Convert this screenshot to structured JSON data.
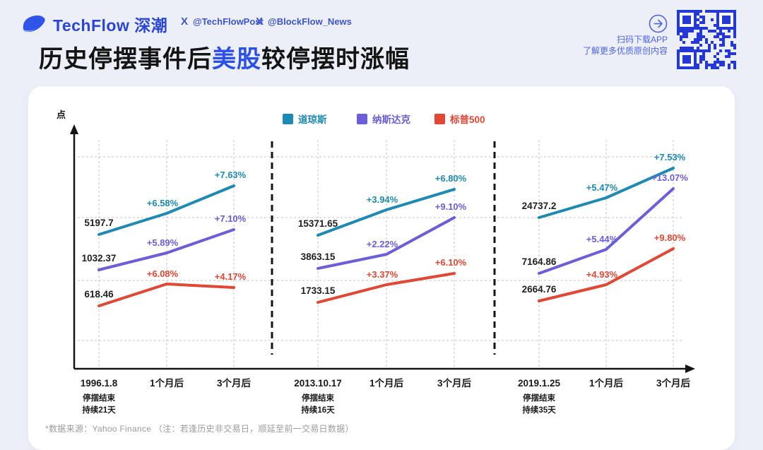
{
  "header": {
    "brand": "TechFlow 深潮",
    "x_glyph": "X",
    "handles": [
      "@TechFlowPost",
      "@BlockFlow_News"
    ],
    "qr_caption_line1": "扫码下载APP",
    "qr_caption_line2": "了解更多优质原创内容"
  },
  "title": {
    "prefix": "历史停摆事件后",
    "highlight": "美股",
    "suffix": "较停摆时涨幅"
  },
  "colors": {
    "background": "#EDEFF8",
    "card": "#FFFFFF",
    "title_highlight_blue": "#2B50E8",
    "brand_blue": "#2946D8",
    "qr_blue": "#2438D6",
    "dow_teal": "#1E89B2",
    "nasdaq_purple": "#6A5ED9",
    "sp500_red": "#E04734"
  },
  "footer": {
    "source": "*数据来源：Yahoo Finance （注：若逢历史非交易日，顺延至前一交易日数据）"
  },
  "chart_data": {
    "type": "line",
    "unit_label": "点",
    "grid": "dashed",
    "legend_position": "top",
    "legend": [
      {
        "name": "道琼斯",
        "color": "#1E89B2"
      },
      {
        "name": "纳斯达克",
        "color": "#6A5ED9"
      },
      {
        "name": "标普500",
        "color": "#E04734"
      }
    ],
    "panels": [
      {
        "date": "1996.1.8",
        "note_line1": "停摆结束",
        "note_line2": "持续21天",
        "x_labels": [
          "1996.1.8",
          "1个月后",
          "3个月后"
        ],
        "series": [
          {
            "name": "道琼斯",
            "start": 5197.7,
            "start_label": "5197.7",
            "pct_1m": "+6.58%",
            "pct_3m": "+7.63%",
            "pct_values": [
              6.58,
              7.63
            ]
          },
          {
            "name": "纳斯达克",
            "start": 1032.37,
            "start_label": "1032.37",
            "pct_1m": "+5.89%",
            "pct_3m": "+7.10%",
            "pct_values": [
              5.89,
              7.1
            ]
          },
          {
            "name": "标普500",
            "start": 618.46,
            "start_label": "618.46",
            "pct_1m": "+6.08%",
            "pct_3m": "+4.17%",
            "pct_values": [
              6.08,
              4.17
            ]
          }
        ]
      },
      {
        "date": "2013.10.17",
        "note_line1": "停摆结束",
        "note_line2": "持续16天",
        "x_labels": [
          "2013.10.17",
          "1个月后",
          "3个月后"
        ],
        "series": [
          {
            "name": "道琼斯",
            "start": 15371.65,
            "start_label": "15371.65",
            "pct_1m": "+3.94%",
            "pct_3m": "+6.80%",
            "pct_values": [
              3.94,
              6.8
            ]
          },
          {
            "name": "纳斯达克",
            "start": 3863.15,
            "start_label": "3863.15",
            "pct_1m": "+2.22%",
            "pct_3m": "+9.10%",
            "pct_values": [
              2.22,
              9.1
            ]
          },
          {
            "name": "标普500",
            "start": 1733.15,
            "start_label": "1733.15",
            "pct_1m": "+3.37%",
            "pct_3m": "+6.10%",
            "pct_values": [
              3.37,
              6.1
            ]
          }
        ]
      },
      {
        "date": "2019.1.25",
        "note_line1": "停摆结束",
        "note_line2": "持续35天",
        "x_labels": [
          "2019.1.25",
          "1个月后",
          "3个月后"
        ],
        "series": [
          {
            "name": "道琼斯",
            "start": 24737.2,
            "start_label": "24737.2",
            "pct_1m": "+5.47%",
            "pct_3m": "+7.53%",
            "pct_values": [
              5.47,
              7.53
            ]
          },
          {
            "name": "纳斯达克",
            "start": 7164.86,
            "start_label": "7164.86",
            "pct_1m": "+5.44%",
            "pct_3m": "+13.07%",
            "pct_values": [
              5.44,
              13.07
            ]
          },
          {
            "name": "标普500",
            "start": 2664.76,
            "start_label": "2664.76",
            "pct_1m": "+4.93%",
            "pct_3m": "+9.80%",
            "pct_values": [
              4.93,
              9.8
            ]
          }
        ]
      }
    ]
  }
}
